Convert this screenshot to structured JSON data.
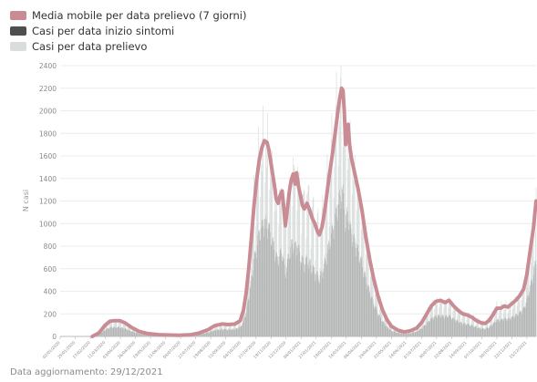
{
  "legend": {
    "items": [
      {
        "label": "Media mobile per data prelievo (7 giorni)",
        "color": "#c98c94"
      },
      {
        "label": "Casi per data inizio sintomi",
        "color": "#4f4f4f"
      },
      {
        "label": "Casi per data prelievo",
        "color": "#d9dedd"
      }
    ]
  },
  "footer": {
    "updated": "Data aggiornamento: 29/12/2021"
  },
  "chart_data": {
    "type": "line",
    "ylabel": "N casi",
    "ylim": [
      0,
      2400
    ],
    "yticks": [
      0,
      200,
      400,
      600,
      800,
      1000,
      1200,
      1400,
      1600,
      1800,
      2000,
      2200,
      2400
    ],
    "grid": "horizontal",
    "legend_position": "top-left",
    "x_range": [
      "2020-01-02",
      "2021-12-29"
    ],
    "xticks": [
      "02/01/2020",
      "25/01/2020",
      "17/02/2020",
      "11/03/2020",
      "03/04/2020",
      "26/04/2020",
      "19/05/2020",
      "11/06/2020",
      "04/07/2020",
      "27/07/2020",
      "19/08/2020",
      "11/09/2020",
      "04/10/2020",
      "27/10/2020",
      "19/11/2020",
      "12/12/2020",
      "04/01/2021",
      "27/01/2021",
      "19/02/2021",
      "14/03/2021",
      "06/04/2021",
      "29/04/2021",
      "22/05/2021",
      "14/06/2021",
      "07/07/2021",
      "30/07/2021",
      "22/08/2021",
      "14/09/2021",
      "07/10/2021",
      "30/10/2021",
      "22/11/2021",
      "15/12/2021"
    ],
    "series": [
      {
        "name": "Media mobile per data prelievo (7 giorni)",
        "color": "#c98c94",
        "points": [
          [
            "2020-02-20",
            0
          ],
          [
            "2020-03-01",
            30
          ],
          [
            "2020-03-10",
            95
          ],
          [
            "2020-03-18",
            135
          ],
          [
            "2020-03-25",
            140
          ],
          [
            "2020-04-02",
            140
          ],
          [
            "2020-04-10",
            120
          ],
          [
            "2020-04-20",
            80
          ],
          [
            "2020-05-01",
            45
          ],
          [
            "2020-05-15",
            25
          ],
          [
            "2020-06-01",
            15
          ],
          [
            "2020-07-01",
            10
          ],
          [
            "2020-07-20",
            15
          ],
          [
            "2020-08-01",
            30
          ],
          [
            "2020-08-15",
            60
          ],
          [
            "2020-08-25",
            95
          ],
          [
            "2020-09-05",
            110
          ],
          [
            "2020-09-15",
            105
          ],
          [
            "2020-09-25",
            110
          ],
          [
            "2020-10-03",
            140
          ],
          [
            "2020-10-08",
            230
          ],
          [
            "2020-10-12",
            380
          ],
          [
            "2020-10-16",
            600
          ],
          [
            "2020-10-20",
            870
          ],
          [
            "2020-10-24",
            1150
          ],
          [
            "2020-10-28",
            1380
          ],
          [
            "2020-11-01",
            1560
          ],
          [
            "2020-11-05",
            1670
          ],
          [
            "2020-11-09",
            1735
          ],
          [
            "2020-11-13",
            1720
          ],
          [
            "2020-11-16",
            1650
          ],
          [
            "2020-11-20",
            1500
          ],
          [
            "2020-11-24",
            1350
          ],
          [
            "2020-11-27",
            1220
          ],
          [
            "2020-11-30",
            1180
          ],
          [
            "2020-12-03",
            1250
          ],
          [
            "2020-12-06",
            1290
          ],
          [
            "2020-12-08",
            1180
          ],
          [
            "2020-12-11",
            980
          ],
          [
            "2020-12-14",
            1130
          ],
          [
            "2020-12-17",
            1280
          ],
          [
            "2020-12-20",
            1390
          ],
          [
            "2020-12-23",
            1440
          ],
          [
            "2020-12-26",
            1350
          ],
          [
            "2020-12-28",
            1450
          ],
          [
            "2020-12-31",
            1330
          ],
          [
            "2021-01-03",
            1250
          ],
          [
            "2021-01-06",
            1160
          ],
          [
            "2021-01-09",
            1130
          ],
          [
            "2021-01-13",
            1180
          ],
          [
            "2021-01-17",
            1120
          ],
          [
            "2021-01-21",
            1050
          ],
          [
            "2021-01-25",
            1000
          ],
          [
            "2021-01-29",
            930
          ],
          [
            "2021-02-01",
            900
          ],
          [
            "2021-02-05",
            970
          ],
          [
            "2021-02-09",
            1110
          ],
          [
            "2021-02-13",
            1290
          ],
          [
            "2021-02-17",
            1460
          ],
          [
            "2021-02-21",
            1620
          ],
          [
            "2021-02-25",
            1800
          ],
          [
            "2021-03-01",
            1980
          ],
          [
            "2021-03-04",
            2110
          ],
          [
            "2021-03-07",
            2200
          ],
          [
            "2021-03-09",
            2180
          ],
          [
            "2021-03-11",
            2000
          ],
          [
            "2021-03-13",
            1700
          ],
          [
            "2021-03-15",
            1850
          ],
          [
            "2021-03-17",
            1880
          ],
          [
            "2021-03-19",
            1700
          ],
          [
            "2021-03-22",
            1580
          ],
          [
            "2021-03-26",
            1470
          ],
          [
            "2021-04-01",
            1310
          ],
          [
            "2021-04-07",
            1120
          ],
          [
            "2021-04-13",
            880
          ],
          [
            "2021-04-19",
            680
          ],
          [
            "2021-04-25",
            510
          ],
          [
            "2021-05-01",
            370
          ],
          [
            "2021-05-08",
            240
          ],
          [
            "2021-05-15",
            150
          ],
          [
            "2021-05-22",
            90
          ],
          [
            "2021-06-01",
            55
          ],
          [
            "2021-06-10",
            40
          ],
          [
            "2021-06-20",
            50
          ],
          [
            "2021-06-30",
            75
          ],
          [
            "2021-07-08",
            130
          ],
          [
            "2021-07-15",
            200
          ],
          [
            "2021-07-22",
            270
          ],
          [
            "2021-07-29",
            310
          ],
          [
            "2021-08-05",
            320
          ],
          [
            "2021-08-12",
            300
          ],
          [
            "2021-08-18",
            320
          ],
          [
            "2021-08-25",
            270
          ],
          [
            "2021-09-01",
            230
          ],
          [
            "2021-09-08",
            200
          ],
          [
            "2021-09-15",
            190
          ],
          [
            "2021-09-22",
            170
          ],
          [
            "2021-09-29",
            140
          ],
          [
            "2021-10-06",
            120
          ],
          [
            "2021-10-12",
            115
          ],
          [
            "2021-10-18",
            140
          ],
          [
            "2021-10-24",
            190
          ],
          [
            "2021-10-30",
            250
          ],
          [
            "2021-11-05",
            250
          ],
          [
            "2021-11-10",
            270
          ],
          [
            "2021-11-16",
            260
          ],
          [
            "2021-11-22",
            290
          ],
          [
            "2021-11-28",
            320
          ],
          [
            "2021-12-04",
            360
          ],
          [
            "2021-12-10",
            420
          ],
          [
            "2021-12-15",
            550
          ],
          [
            "2021-12-20",
            760
          ],
          [
            "2021-12-25",
            960
          ],
          [
            "2021-12-29",
            1200
          ]
        ]
      },
      {
        "name": "Casi per data inizio sintomi",
        "color": "#4f4f4f"
      },
      {
        "name": "Casi per data prelievo",
        "color": "#d9dedd"
      }
    ]
  }
}
